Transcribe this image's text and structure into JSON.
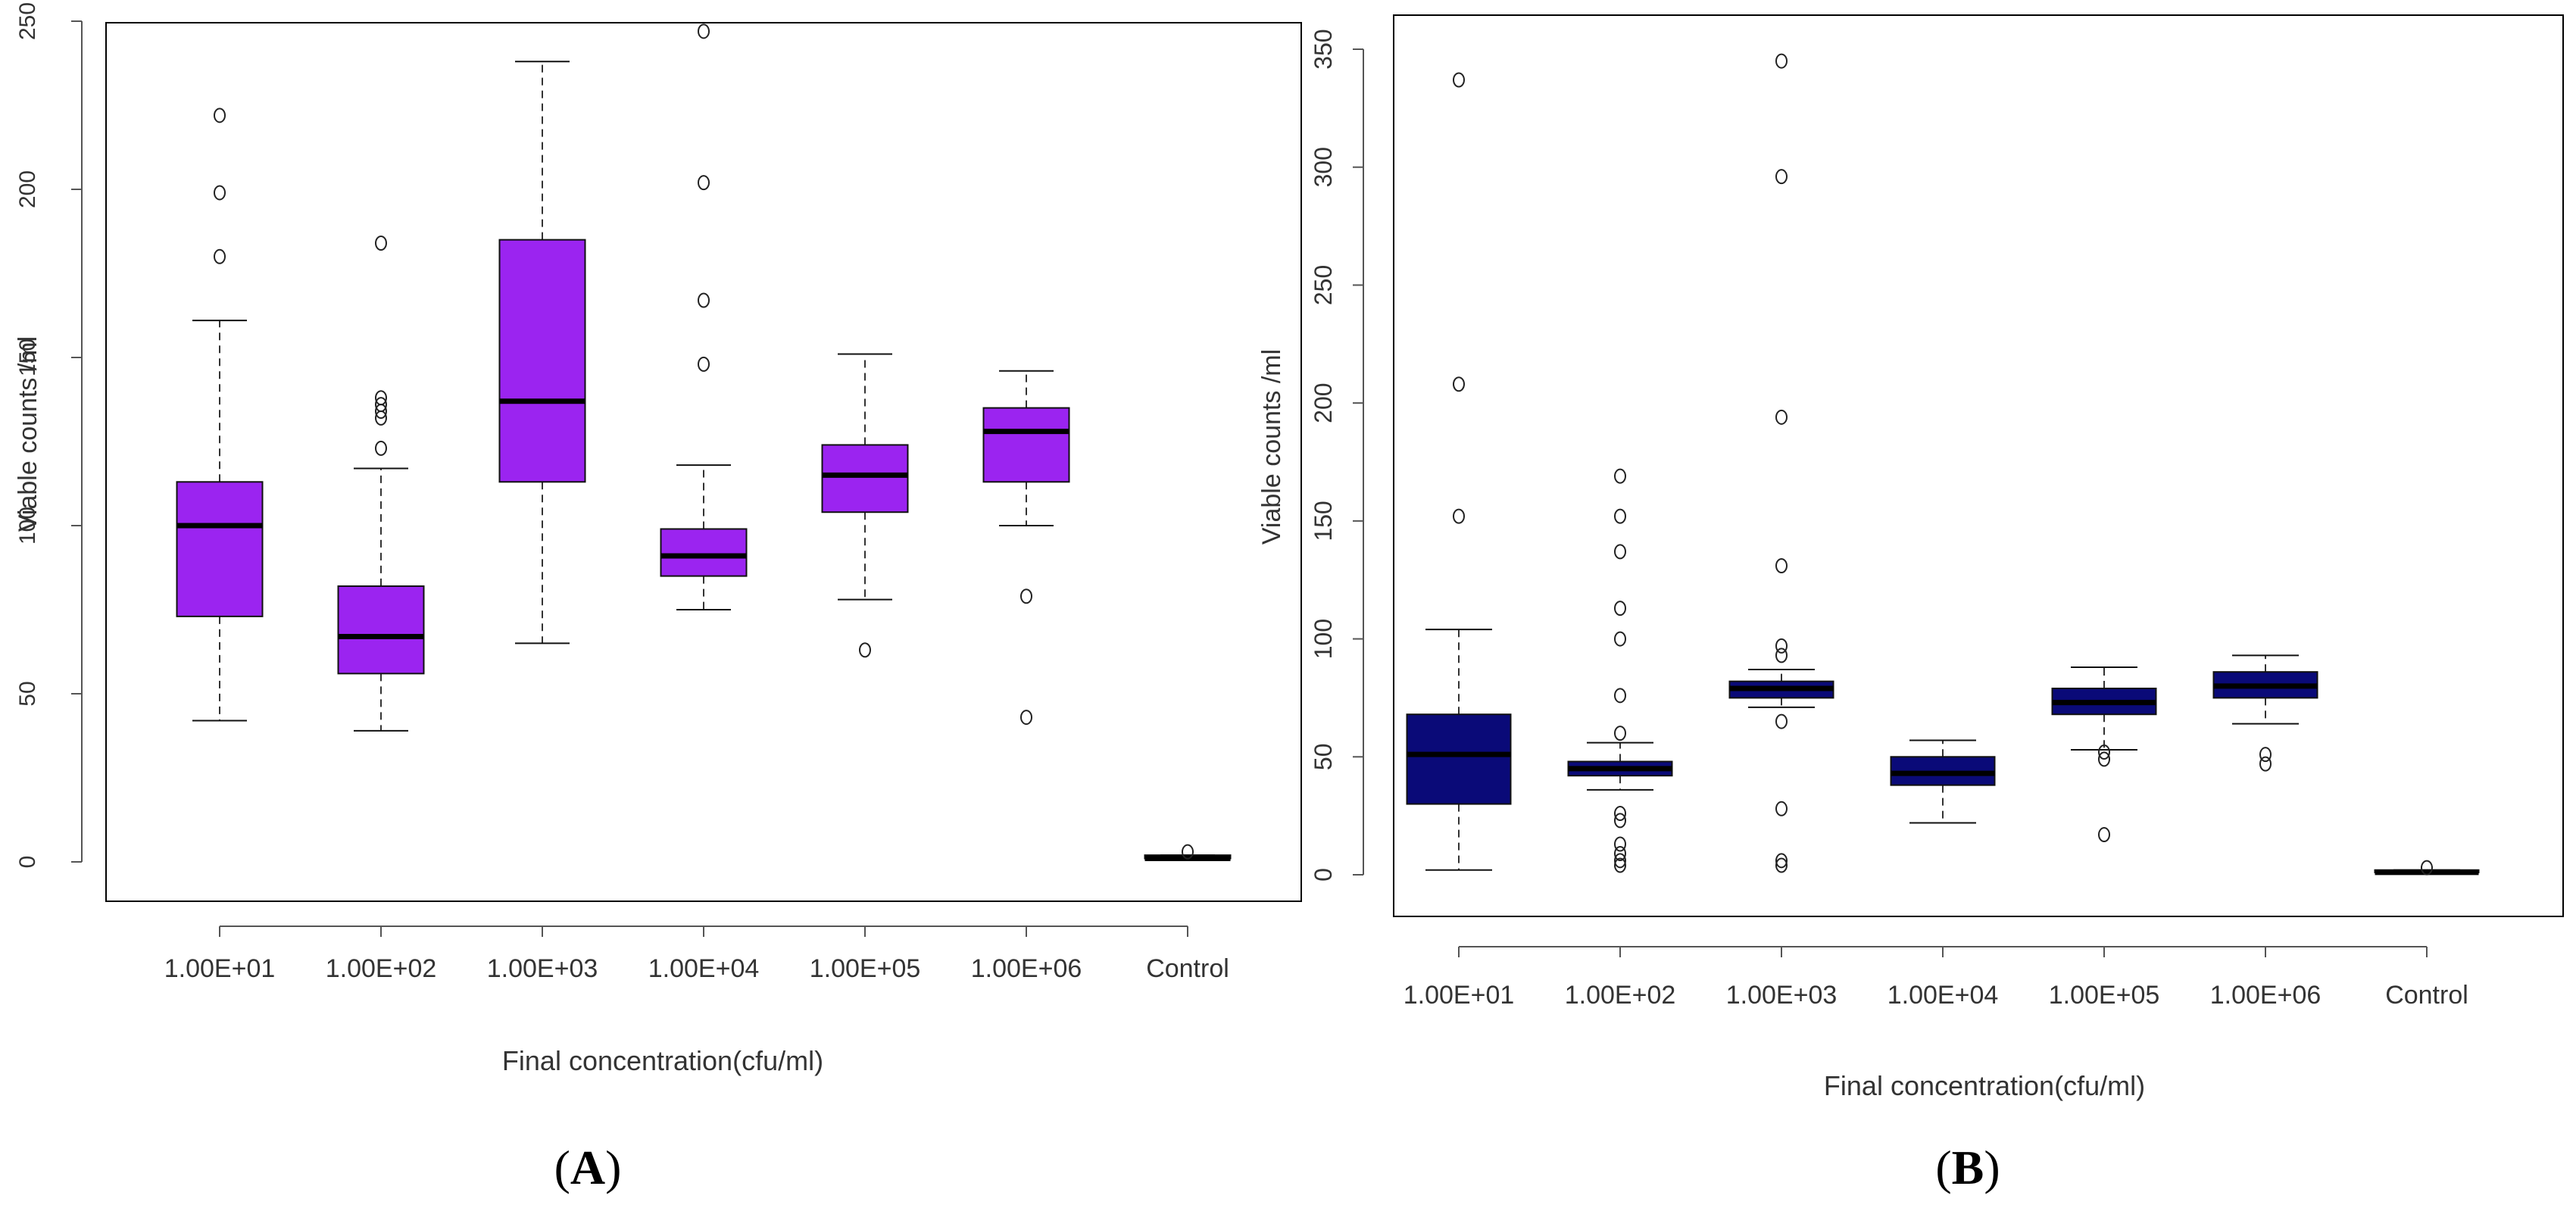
{
  "chart_data": [
    {
      "type": "box",
      "panel_label": {
        "open": "(",
        "letter": "A",
        "close": ")"
      },
      "xlabel": "Final concentration(cfu/ml)",
      "ylabel": "Viable counts /ml",
      "ylim": [
        0,
        250
      ],
      "yticks": [
        "0",
        "50",
        "100",
        "150",
        "200",
        "250"
      ],
      "fill": "#9b24f0",
      "categories": [
        "1.00E+01",
        "1.00E+02",
        "1.00E+03",
        "1.00E+04",
        "1.00E+05",
        "1.00E+06",
        "Control"
      ],
      "boxes": [
        {
          "whisker_low": 42,
          "q1": 73,
          "median": 100,
          "q3": 113,
          "whisker_high": 161,
          "outliers": [
            180,
            199,
            222
          ]
        },
        {
          "whisker_low": 39,
          "q1": 56,
          "median": 67,
          "q3": 82,
          "whisker_high": 117,
          "outliers": [
            123,
            132,
            134,
            136,
            138,
            184
          ]
        },
        {
          "whisker_low": 65,
          "q1": 113,
          "median": 137,
          "q3": 185,
          "whisker_high": 238,
          "outliers": []
        },
        {
          "whisker_low": 75,
          "q1": 85,
          "median": 91,
          "q3": 99,
          "whisker_high": 118,
          "outliers": [
            148,
            167,
            202,
            247
          ]
        },
        {
          "whisker_low": 78,
          "q1": 104,
          "median": 115,
          "q3": 124,
          "whisker_high": 151,
          "outliers": [
            63
          ]
        },
        {
          "whisker_low": 100,
          "q1": 113,
          "median": 128,
          "q3": 135,
          "whisker_high": 146,
          "outliers": [
            79,
            43
          ]
        },
        {
          "whisker_low": 1,
          "q1": 1,
          "median": 1,
          "q3": 2,
          "whisker_high": 2,
          "outliers": [
            3
          ]
        }
      ]
    },
    {
      "type": "box",
      "panel_label": {
        "open": "(",
        "letter": "B",
        "close": ")"
      },
      "xlabel": "Final concentration(cfu/ml)",
      "ylabel": "Viable counts /ml",
      "ylim": [
        0,
        350
      ],
      "yticks": [
        "0",
        "50",
        "100",
        "150",
        "200",
        "250",
        "300",
        "350"
      ],
      "fill": "#0a0a78",
      "categories": [
        "1.00E+01",
        "1.00E+02",
        "1.00E+03",
        "1.00E+04",
        "1.00E+05",
        "1.00E+06",
        "Control"
      ],
      "boxes": [
        {
          "whisker_low": 2,
          "q1": 30,
          "median": 51,
          "q3": 68,
          "whisker_high": 104,
          "outliers": [
            152,
            208,
            337
          ]
        },
        {
          "whisker_low": 36,
          "q1": 42,
          "median": 45,
          "q3": 48,
          "whisker_high": 56,
          "outliers": [
            4,
            6,
            9,
            13,
            23,
            26,
            60,
            76,
            100,
            113,
            137,
            152,
            169
          ]
        },
        {
          "whisker_low": 71,
          "q1": 75,
          "median": 79,
          "q3": 82,
          "whisker_high": 87,
          "outliers": [
            4,
            6,
            28,
            65,
            93,
            97,
            131,
            194,
            296,
            345
          ]
        },
        {
          "whisker_low": 22,
          "q1": 38,
          "median": 43,
          "q3": 50,
          "whisker_high": 57,
          "outliers": []
        },
        {
          "whisker_low": 53,
          "q1": 68,
          "median": 73,
          "q3": 79,
          "whisker_high": 88,
          "outliers": [
            49,
            52,
            17
          ]
        },
        {
          "whisker_low": 64,
          "q1": 75,
          "median": 80,
          "q3": 86,
          "whisker_high": 93,
          "outliers": [
            47,
            51
          ]
        },
        {
          "whisker_low": 1,
          "q1": 1,
          "median": 1,
          "q3": 2,
          "whisker_high": 2,
          "outliers": [
            3
          ]
        }
      ]
    }
  ]
}
